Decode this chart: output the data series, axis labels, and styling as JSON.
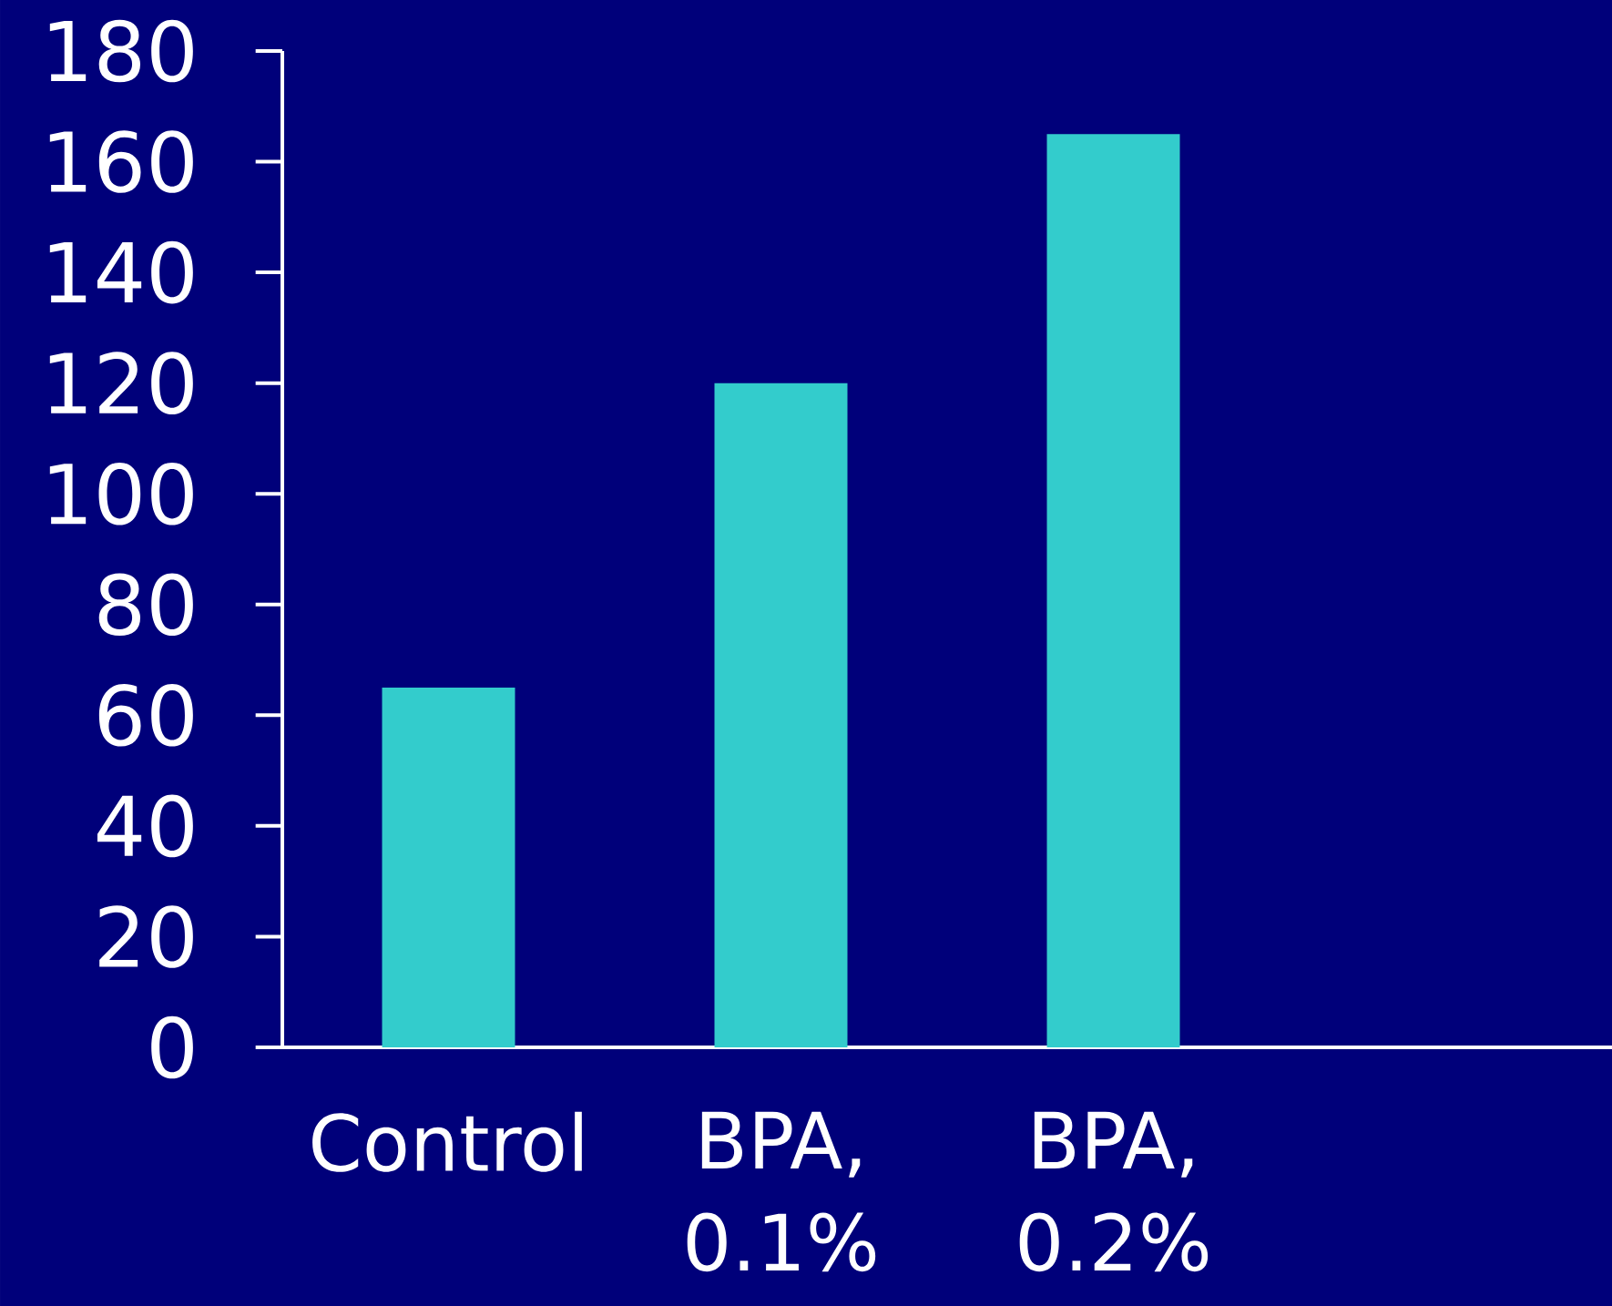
{
  "chart_data": {
    "type": "bar",
    "categories": [
      "Control",
      "BPA, 0.1%",
      "BPA, 0.2%",
      null
    ],
    "values": [
      65,
      120,
      165,
      null
    ],
    "color": "#33cccc",
    "ylim": [
      0,
      180
    ],
    "yticks": [
      0,
      20,
      40,
      60,
      80,
      100,
      120,
      140,
      160,
      180
    ]
  }
}
